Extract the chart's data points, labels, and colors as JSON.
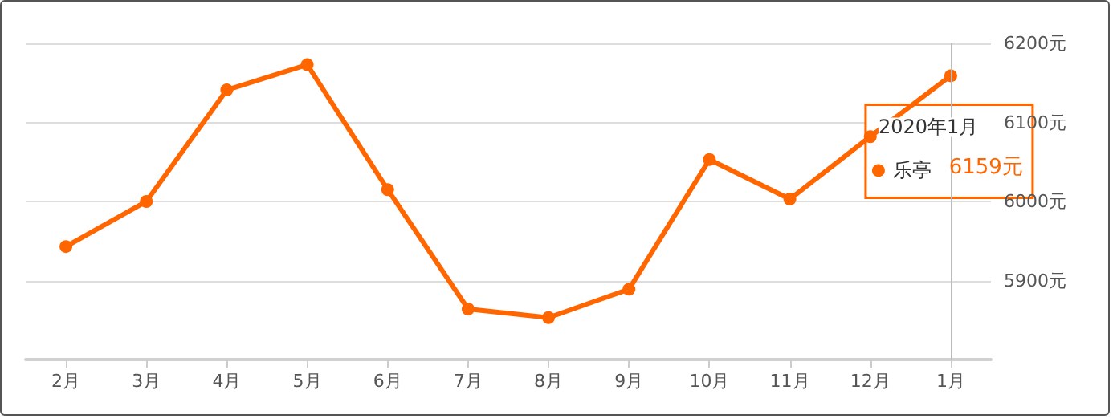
{
  "chart_data": {
    "type": "line",
    "categories": [
      "2月",
      "3月",
      "4月",
      "5月",
      "6月",
      "7月",
      "8月",
      "9月",
      "10月",
      "11月",
      "12月",
      "1月"
    ],
    "series": [
      {
        "name": "乐亭",
        "color": "#ff6600",
        "values": [
          5943,
          6000,
          6141,
          6173,
          6015,
          5864,
          5853,
          5889,
          6053,
          6003,
          6082,
          6159
        ]
      }
    ],
    "ylim": [
      5800,
      6200
    ],
    "yticks": [
      {
        "value": 5900,
        "label": "5900元"
      },
      {
        "value": 6000,
        "label": "6000元"
      },
      {
        "value": 6100,
        "label": "6100元"
      },
      {
        "value": 6200,
        "label": "6200元"
      }
    ],
    "grid": "y",
    "marker": "circle",
    "legend": "right",
    "line_style": "solid",
    "ref_lines": [
      {
        "axis": "x",
        "value": "1月",
        "color": "#bbbbbb"
      }
    ],
    "annotations": [
      "2020年1月",
      "6159元"
    ]
  }
}
